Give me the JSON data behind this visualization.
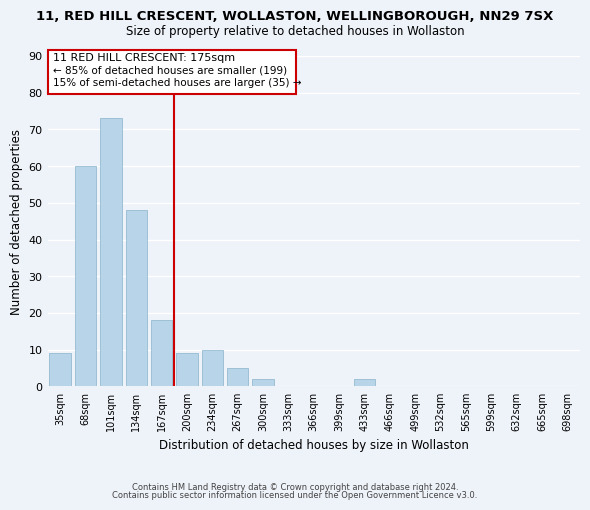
{
  "title_line1": "11, RED HILL CRESCENT, WOLLASTON, WELLINGBOROUGH, NN29 7SX",
  "title_line2": "Size of property relative to detached houses in Wollaston",
  "xlabel": "Distribution of detached houses by size in Wollaston",
  "ylabel": "Number of detached properties",
  "categories": [
    "35sqm",
    "68sqm",
    "101sqm",
    "134sqm",
    "167sqm",
    "200sqm",
    "234sqm",
    "267sqm",
    "300sqm",
    "333sqm",
    "366sqm",
    "399sqm",
    "433sqm",
    "466sqm",
    "499sqm",
    "532sqm",
    "565sqm",
    "599sqm",
    "632sqm",
    "665sqm",
    "698sqm"
  ],
  "values": [
    9,
    60,
    73,
    48,
    18,
    9,
    10,
    5,
    2,
    0,
    0,
    0,
    2,
    0,
    0,
    0,
    0,
    0,
    0,
    0,
    0
  ],
  "bar_color": "#b8d4e8",
  "vline_color": "#cc0000",
  "vline_x": 4.5,
  "annotation_title": "11 RED HILL CRESCENT: 175sqm",
  "annotation_line1": "← 85% of detached houses are smaller (199)",
  "annotation_line2": "15% of semi-detached houses are larger (35) →",
  "annotation_box_color": "#ffffff",
  "annotation_box_edge": "#cc0000",
  "ylim": [
    0,
    90
  ],
  "yticks": [
    0,
    10,
    20,
    30,
    40,
    50,
    60,
    70,
    80,
    90
  ],
  "footer_line1": "Contains HM Land Registry data © Crown copyright and database right 2024.",
  "footer_line2": "Contains public sector information licensed under the Open Government Licence v3.0.",
  "bg_color": "#eef2f9",
  "grid_color": "#ffffff"
}
